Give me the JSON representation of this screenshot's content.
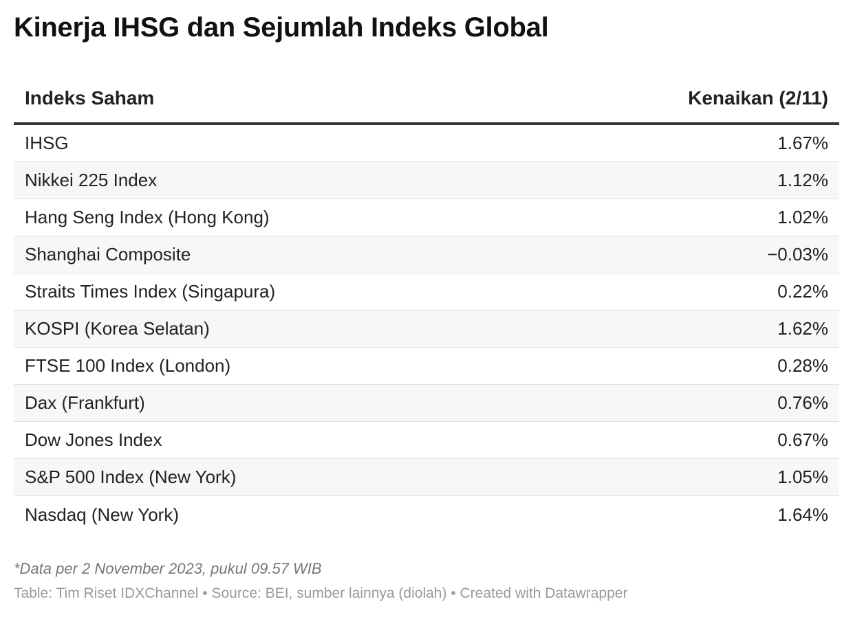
{
  "title": "Kinerja IHSG dan Sejumlah Indeks Global",
  "chart_data": {
    "type": "table",
    "title": "Kinerja IHSG dan Sejumlah Indeks Global",
    "columns": [
      "Indeks Saham",
      "Kenaikan (2/11)"
    ],
    "rows": [
      {
        "name": "IHSG",
        "value": "1.67%"
      },
      {
        "name": "Nikkei 225 Index",
        "value": "1.12%"
      },
      {
        "name": "Hang Seng Index (Hong Kong)",
        "value": "1.02%"
      },
      {
        "name": "Shanghai Composite",
        "value": "−0.03%"
      },
      {
        "name": "Straits Times Index (Singapura)",
        "value": "0.22%"
      },
      {
        "name": "KOSPI (Korea Selatan)",
        "value": "1.62%"
      },
      {
        "name": "FTSE 100 Index (London)",
        "value": "0.28%"
      },
      {
        "name": "Dax (Frankfurt)",
        "value": "0.76%"
      },
      {
        "name": "Dow Jones Index",
        "value": "0.67%"
      },
      {
        "name": "S&P 500 Index (New York)",
        "value": "1.05%"
      },
      {
        "name": "Nasdaq (New York)",
        "value": "1.64%"
      }
    ]
  },
  "note": "*Data per 2 November 2023, pukul 09.57 WIB",
  "footer": "Table: Tim Riset IDXChannel • Source: BEI, sumber lainnya (diolah) • Created with Datawrapper"
}
